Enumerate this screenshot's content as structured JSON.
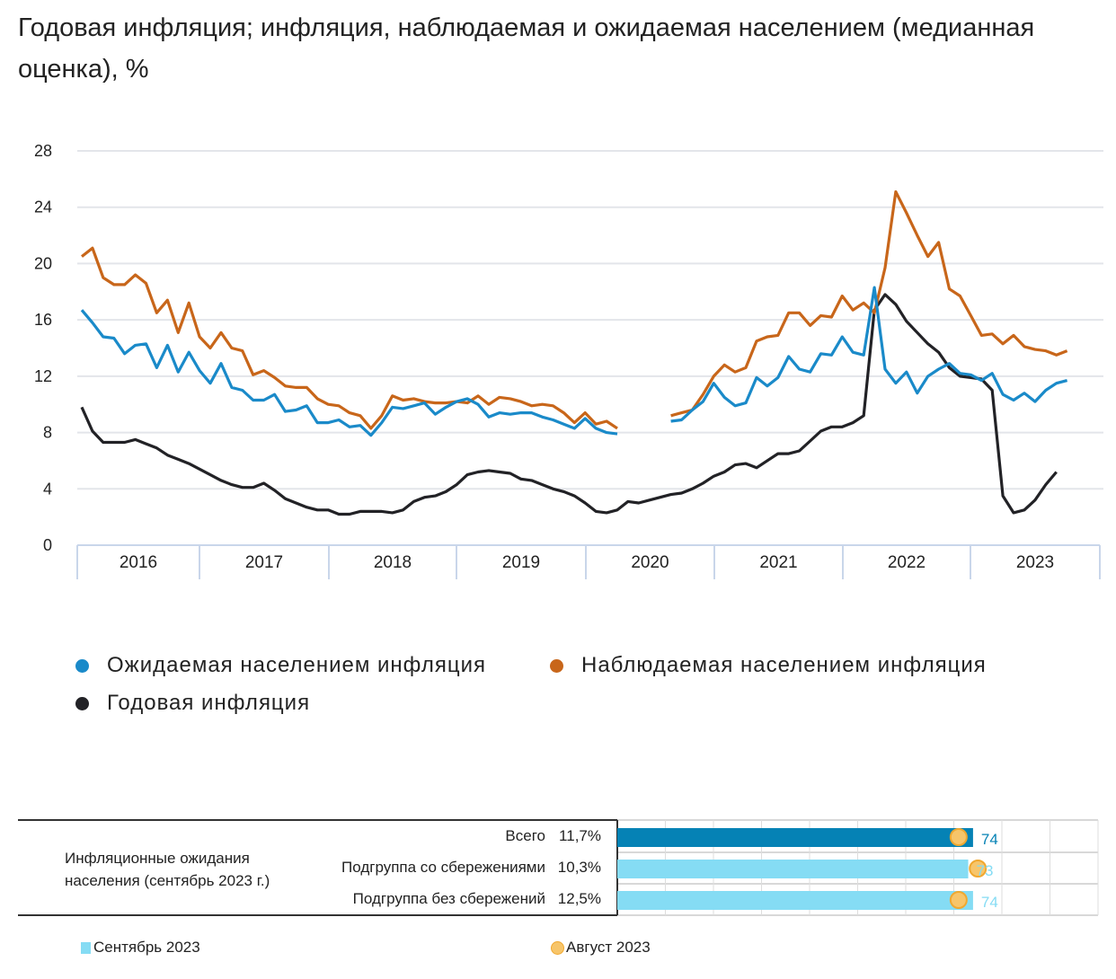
{
  "title": "Годовая инфляция; инфляция, наблюдаемая и ожидаемая населением (медианная оценка), %",
  "colors": {
    "expected": "#1a8ac9",
    "observed": "#c8661a",
    "inflation": "#222226",
    "bar_total": "#0582b5",
    "bar_sub": "#85dcf4",
    "august_dot": "#f7c56a"
  },
  "chart_data": [
    {
      "type": "line",
      "title": "Годовая инфляция; инфляция, наблюдаемая и ожидаемая населением (медианная оценка), %",
      "x_start": "2016-01",
      "frequency": "monthly",
      "x_tick_labels": [
        "2016",
        "2017",
        "2018",
        "2019",
        "2020",
        "2021",
        "2022",
        "2023"
      ],
      "ylim": [
        0,
        28
      ],
      "y_ticks": [
        0,
        4,
        8,
        12,
        16,
        20,
        24,
        28
      ],
      "grid": "horizontal",
      "legend_placement": "bottom",
      "series": [
        {
          "name": "Ожидаемая населением инфляция",
          "color": "#1a8ac9",
          "values": [
            16.7,
            15.8,
            14.8,
            14.7,
            13.6,
            14.2,
            14.3,
            12.6,
            14.2,
            12.3,
            13.7,
            12.4,
            11.5,
            12.9,
            11.2,
            11.0,
            10.3,
            10.3,
            10.7,
            9.5,
            9.6,
            9.9,
            8.7,
            8.7,
            8.9,
            8.4,
            8.5,
            7.8,
            8.7,
            9.8,
            9.7,
            9.9,
            10.1,
            9.3,
            9.8,
            10.2,
            10.4,
            10.0,
            9.1,
            9.4,
            9.3,
            9.4,
            9.4,
            9.1,
            8.9,
            8.6,
            8.3,
            9.0,
            8.3,
            8.0,
            7.9,
            null,
            null,
            null,
            null,
            8.8,
            8.9,
            9.6,
            10.2,
            11.5,
            10.5,
            9.9,
            10.1,
            11.9,
            11.3,
            11.9,
            13.4,
            12.5,
            12.3,
            13.6,
            13.5,
            14.8,
            13.7,
            13.5,
            18.3,
            12.5,
            11.5,
            12.3,
            10.8,
            12.0,
            12.5,
            12.9,
            12.2,
            12.1,
            11.7,
            12.2,
            10.7,
            10.3,
            10.8,
            10.2,
            11.0,
            11.5,
            11.7
          ]
        },
        {
          "name": "Наблюдаемая населением инфляция",
          "color": "#c8661a",
          "values": [
            20.5,
            21.1,
            19.0,
            18.5,
            18.5,
            19.2,
            18.6,
            16.5,
            17.4,
            15.1,
            17.2,
            14.8,
            14.0,
            15.1,
            14.0,
            13.8,
            12.1,
            12.4,
            11.9,
            11.3,
            11.2,
            11.2,
            10.4,
            10.0,
            9.9,
            9.4,
            9.2,
            8.3,
            9.2,
            10.6,
            10.3,
            10.4,
            10.2,
            10.1,
            10.1,
            10.2,
            10.1,
            10.6,
            10.0,
            10.5,
            10.4,
            10.2,
            9.9,
            10.0,
            9.9,
            9.4,
            8.7,
            9.4,
            8.6,
            8.8,
            8.3,
            null,
            null,
            null,
            null,
            9.2,
            9.4,
            9.6,
            10.7,
            12.0,
            12.8,
            12.3,
            12.6,
            14.5,
            14.8,
            14.9,
            16.5,
            16.5,
            15.6,
            16.3,
            16.2,
            17.7,
            16.7,
            17.2,
            16.5,
            19.7,
            25.1,
            23.6,
            22.0,
            20.5,
            21.5,
            18.2,
            17.7,
            16.3,
            14.9,
            15.0,
            14.3,
            14.9,
            14.1,
            13.9,
            13.8,
            13.5,
            13.8
          ]
        },
        {
          "name": "Годовая инфляция",
          "color": "#222226",
          "values": [
            9.8,
            8.1,
            7.3,
            7.3,
            7.3,
            7.5,
            7.2,
            6.9,
            6.4,
            6.1,
            5.8,
            5.4,
            5.0,
            4.6,
            4.3,
            4.1,
            4.1,
            4.4,
            3.9,
            3.3,
            3.0,
            2.7,
            2.5,
            2.5,
            2.2,
            2.2,
            2.4,
            2.4,
            2.4,
            2.3,
            2.5,
            3.1,
            3.4,
            3.5,
            3.8,
            4.3,
            5.0,
            5.2,
            5.3,
            5.2,
            5.1,
            4.7,
            4.6,
            4.3,
            4.0,
            3.8,
            3.5,
            3.0,
            2.4,
            2.3,
            2.5,
            3.1,
            3.0,
            3.2,
            3.4,
            3.6,
            3.7,
            4.0,
            4.4,
            4.9,
            5.2,
            5.7,
            5.8,
            5.5,
            6.0,
            6.5,
            6.5,
            6.7,
            7.4,
            8.1,
            8.4,
            8.4,
            8.7,
            9.2,
            16.7,
            17.8,
            17.1,
            15.9,
            15.1,
            14.3,
            13.7,
            12.6,
            12.0,
            11.9,
            11.8,
            11.0,
            3.5,
            2.3,
            2.5,
            3.2,
            4.3,
            5.2
          ]
        }
      ]
    },
    {
      "type": "bar",
      "orientation": "horizontal",
      "title": "Инфляционные ожидания населения (сентябрь 2023 г.)",
      "xlim": [
        0,
        100
      ],
      "categories": [
        "Всего",
        "Подгруппа со сбережениями",
        "Подгруппа без сбережений"
      ],
      "category_values": [
        "11,7%",
        "10,3%",
        "12,5%"
      ],
      "series": [
        {
          "name": "Сентябрь 2023",
          "values": [
            74,
            73,
            74
          ]
        },
        {
          "name": "Август 2023",
          "values": [
            71,
            75,
            71
          ]
        }
      ],
      "data_labels": [
        "74",
        "73",
        "74"
      ]
    }
  ]
}
